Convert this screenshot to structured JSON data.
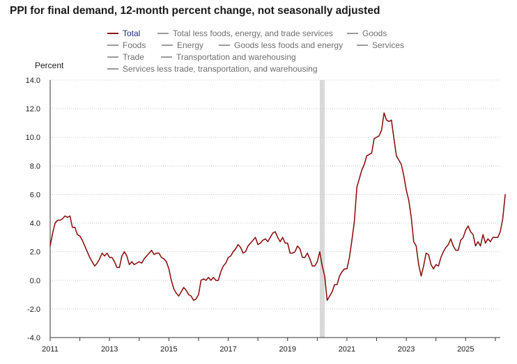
{
  "title": "PPI for final demand, 12-month percent change, not seasonally adjusted",
  "ylabel": "Percent",
  "legend": [
    {
      "label": "Total",
      "active": true
    },
    {
      "label": "Total less foods, energy, and trade services",
      "active": false
    },
    {
      "label": "Goods",
      "active": false
    },
    {
      "label": "Foods",
      "active": false
    },
    {
      "label": "Energy",
      "active": false
    },
    {
      "label": "Goods less foods and energy",
      "active": false
    },
    {
      "label": "Services",
      "active": false
    },
    {
      "label": "Trade",
      "active": false
    },
    {
      "label": "Transportation and warehousing",
      "active": false
    },
    {
      "label": "Services less trade, transportation, and warehousing",
      "active": false
    }
  ],
  "colors": {
    "total": "#8b1414",
    "inactive": "#9a9a9a",
    "shade": "#d9d9d9",
    "grid": "#c8c8c8"
  },
  "chart_data": {
    "type": "line",
    "ylim": [
      -4.0,
      14.0
    ],
    "yticks": [
      "14.0",
      "12.0",
      "10.0",
      "8.0",
      "6.0",
      "4.0",
      "2.0",
      "0.0",
      "-2.0",
      "-4.0"
    ],
    "xlim": [
      "2011-01",
      "2026-03"
    ],
    "xticks": [
      "2011",
      "2013",
      "2015",
      "2017",
      "2019",
      "2021",
      "2023",
      "2025"
    ],
    "grid": true,
    "shaded_period": [
      "2020-02",
      "2020-04"
    ],
    "series": [
      {
        "name": "Total",
        "start": "2011-01",
        "frequency": "monthly",
        "values": [
          2.4,
          3.3,
          4.0,
          4.2,
          4.2,
          4.3,
          4.5,
          4.4,
          4.5,
          3.7,
          3.7,
          3.2,
          3.1,
          2.8,
          2.4,
          2.0,
          1.6,
          1.3,
          1.0,
          1.2,
          1.5,
          1.9,
          1.7,
          1.9,
          1.6,
          1.6,
          1.3,
          0.9,
          0.9,
          1.7,
          2.0,
          1.7,
          1.1,
          1.3,
          1.1,
          1.2,
          1.3,
          1.2,
          1.5,
          1.7,
          1.9,
          2.1,
          1.8,
          1.9,
          1.9,
          1.6,
          1.5,
          1.3,
          0.8,
          0.0,
          -0.6,
          -0.9,
          -1.1,
          -0.8,
          -0.5,
          -0.7,
          -1.0,
          -1.1,
          -1.4,
          -1.3,
          -1.0,
          0.0,
          0.1,
          0.0,
          0.2,
          0.0,
          0.2,
          0.0,
          0.0,
          0.6,
          1.0,
          1.2,
          1.6,
          1.7,
          2.0,
          2.2,
          2.5,
          2.3,
          1.9,
          2.0,
          2.4,
          2.6,
          2.8,
          3.0,
          2.5,
          2.6,
          2.8,
          2.9,
          2.7,
          3.0,
          3.3,
          3.4,
          3.0,
          2.7,
          3.0,
          2.6,
          2.6,
          1.9,
          1.9,
          2.0,
          2.4,
          2.2,
          1.6,
          1.6,
          1.9,
          1.5,
          1.0,
          1.0,
          1.3,
          2.0,
          1.0,
          0.3,
          -1.4,
          -1.1,
          -0.8,
          -0.3,
          -0.3,
          0.3,
          0.6,
          0.8,
          0.8,
          1.6,
          2.8,
          4.1,
          6.5,
          7.1,
          7.7,
          8.1,
          8.7,
          8.8,
          8.9,
          9.9,
          10.0,
          10.1,
          10.5,
          11.7,
          11.2,
          11.1,
          11.2,
          9.9,
          8.7,
          8.4,
          8.1,
          7.3,
          6.3,
          5.6,
          4.4,
          2.7,
          2.4,
          1.1,
          0.3,
          1.0,
          1.9,
          1.8,
          1.1,
          0.8,
          1.1,
          1.0,
          1.6,
          2.0,
          2.3,
          2.5,
          2.9,
          2.4,
          2.1,
          2.1,
          2.8,
          3.0,
          3.5,
          3.8,
          3.4,
          3.2,
          2.4,
          2.7,
          2.4,
          3.2,
          2.6,
          2.9,
          2.7,
          3.0,
          3.0,
          3.0,
          3.4,
          4.3,
          6.0
        ]
      }
    ]
  }
}
